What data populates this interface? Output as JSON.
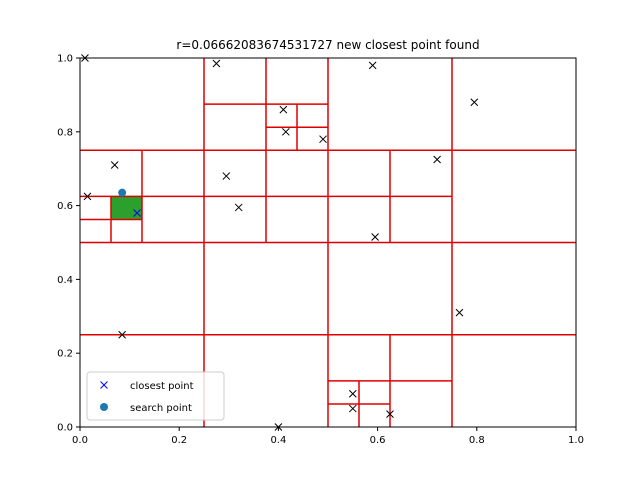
{
  "chart_data": {
    "type": "scatter",
    "title": "r=0.06662083674531727 new closest point found",
    "xlabel": "",
    "ylabel": "",
    "xlim": [
      0.0,
      1.0
    ],
    "ylim": [
      0.0,
      1.0
    ],
    "x_ticks": [
      "0.0",
      "0.2",
      "0.4",
      "0.6",
      "0.8",
      "1.0"
    ],
    "y_ticks": [
      "0.0",
      "0.2",
      "0.4",
      "0.6",
      "0.8",
      "1.0"
    ],
    "grid": false,
    "legend_position": "lower-left",
    "legend": [
      {
        "label": "closest point",
        "marker": "x",
        "color": "#0000ff"
      },
      {
        "label": "search point",
        "marker": "circle",
        "color": "#1f77b4"
      }
    ],
    "points": [
      [
        0.01,
        1.0
      ],
      [
        0.275,
        0.985
      ],
      [
        0.59,
        0.98
      ],
      [
        0.795,
        0.88
      ],
      [
        0.41,
        0.86
      ],
      [
        0.415,
        0.8
      ],
      [
        0.49,
        0.78
      ],
      [
        0.07,
        0.71
      ],
      [
        0.72,
        0.725
      ],
      [
        0.295,
        0.68
      ],
      [
        0.015,
        0.625
      ],
      [
        0.32,
        0.595
      ],
      [
        0.595,
        0.515
      ],
      [
        0.765,
        0.31
      ],
      [
        0.085,
        0.25
      ],
      [
        0.55,
        0.09
      ],
      [
        0.55,
        0.05
      ],
      [
        0.625,
        0.035
      ],
      [
        0.4,
        0.0
      ]
    ],
    "closest_point": [
      0.115,
      0.58
    ],
    "search_point": [
      0.085,
      0.635
    ],
    "search_box": [
      0.0625,
      0.5625,
      0.125,
      0.625
    ],
    "search_box_color": "#2ca02c",
    "tree_line_color": "#dd0000",
    "partition_lines": [
      [
        0.0,
        0.75,
        1.0,
        0.75
      ],
      [
        0.0,
        0.5,
        1.0,
        0.5
      ],
      [
        0.0,
        0.25,
        1.0,
        0.25
      ],
      [
        0.0,
        0.625,
        0.75,
        0.625
      ],
      [
        0.25,
        0.875,
        0.5,
        0.875
      ],
      [
        0.375,
        0.8125,
        0.5,
        0.8125
      ],
      [
        0.0,
        0.5625,
        0.125,
        0.5625
      ],
      [
        0.5,
        0.125,
        0.75,
        0.125
      ],
      [
        0.5,
        0.0625,
        0.625,
        0.0625
      ],
      [
        0.25,
        0.0,
        0.25,
        1.0
      ],
      [
        0.5,
        0.0,
        0.5,
        1.0
      ],
      [
        0.75,
        0.0,
        0.75,
        1.0
      ],
      [
        0.375,
        0.5,
        0.375,
        1.0
      ],
      [
        0.125,
        0.5,
        0.125,
        0.75
      ],
      [
        0.0625,
        0.5,
        0.0625,
        0.625
      ],
      [
        0.4375,
        0.75,
        0.4375,
        0.875
      ],
      [
        0.625,
        0.5,
        0.625,
        0.75
      ],
      [
        0.625,
        0.0,
        0.625,
        0.25
      ],
      [
        0.5625,
        0.0,
        0.5625,
        0.125
      ]
    ]
  }
}
